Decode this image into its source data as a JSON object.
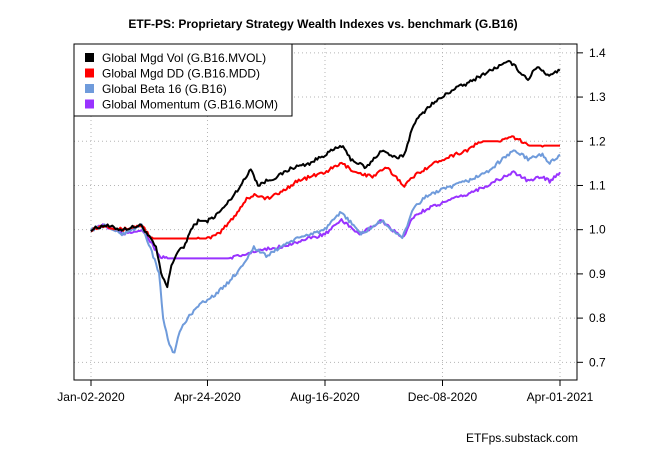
{
  "chart_data": {
    "type": "line",
    "title": "ETF-PS: Proprietary Strategy Wealth Indexes vs. benchmark (G.B16)",
    "xlabel": "",
    "ylabel": "",
    "x_range": [
      "2020-01-02",
      "2021-04-01"
    ],
    "x_ticks": [
      "Jan-02-2020",
      "Apr-24-2020",
      "Aug-16-2020",
      "Dec-08-2020",
      "Apr-01-2021"
    ],
    "ylim": [
      0.66,
      1.42
    ],
    "y_ticks": [
      0.7,
      0.8,
      0.9,
      1.0,
      1.1,
      1.2,
      1.3,
      1.4
    ],
    "y_axis_side": "right",
    "grid": true,
    "legend_position": "top-left",
    "series": [
      {
        "name": "Global Mgd Vol (G.B16.MVOL)",
        "color": "#000000",
        "points": [
          [
            "2020-01-02",
            1.0
          ],
          [
            "2020-01-15",
            1.01
          ],
          [
            "2020-02-01",
            1.0
          ],
          [
            "2020-02-20",
            1.01
          ],
          [
            "2020-03-05",
            0.96
          ],
          [
            "2020-03-10",
            0.9
          ],
          [
            "2020-03-16",
            0.87
          ],
          [
            "2020-03-20",
            0.92
          ],
          [
            "2020-03-26",
            0.95
          ],
          [
            "2020-04-01",
            0.96
          ],
          [
            "2020-04-08",
            1.0
          ],
          [
            "2020-04-15",
            1.02
          ],
          [
            "2020-04-24",
            1.02
          ],
          [
            "2020-05-01",
            1.03
          ],
          [
            "2020-05-10",
            1.05
          ],
          [
            "2020-05-20",
            1.08
          ],
          [
            "2020-06-01",
            1.12
          ],
          [
            "2020-06-05",
            1.14
          ],
          [
            "2020-06-12",
            1.1
          ],
          [
            "2020-06-20",
            1.11
          ],
          [
            "2020-07-01",
            1.12
          ],
          [
            "2020-07-15",
            1.14
          ],
          [
            "2020-08-01",
            1.15
          ],
          [
            "2020-08-16",
            1.17
          ],
          [
            "2020-09-01",
            1.19
          ],
          [
            "2020-09-10",
            1.16
          ],
          [
            "2020-09-25",
            1.14
          ],
          [
            "2020-10-10",
            1.18
          ],
          [
            "2020-10-25",
            1.16
          ],
          [
            "2020-11-01",
            1.17
          ],
          [
            "2020-11-10",
            1.24
          ],
          [
            "2020-11-25",
            1.28
          ],
          [
            "2020-12-08",
            1.3
          ],
          [
            "2020-12-20",
            1.32
          ],
          [
            "2021-01-01",
            1.33
          ],
          [
            "2021-01-15",
            1.35
          ],
          [
            "2021-02-01",
            1.37
          ],
          [
            "2021-02-12",
            1.38
          ],
          [
            "2021-02-20",
            1.36
          ],
          [
            "2021-03-01",
            1.34
          ],
          [
            "2021-03-10",
            1.37
          ],
          [
            "2021-03-20",
            1.35
          ],
          [
            "2021-04-01",
            1.36
          ]
        ]
      },
      {
        "name": "Global Mgd DD (G.B16.MDD)",
        "color": "#ff0000",
        "points": [
          [
            "2020-01-02",
            1.0
          ],
          [
            "2020-01-15",
            1.01
          ],
          [
            "2020-02-01",
            1.0
          ],
          [
            "2020-02-20",
            1.01
          ],
          [
            "2020-03-01",
            0.98
          ],
          [
            "2020-04-15",
            0.98
          ],
          [
            "2020-04-24",
            0.98
          ],
          [
            "2020-05-05",
            0.99
          ],
          [
            "2020-05-20",
            1.03
          ],
          [
            "2020-06-01",
            1.07
          ],
          [
            "2020-06-10",
            1.08
          ],
          [
            "2020-06-20",
            1.07
          ],
          [
            "2020-07-01",
            1.08
          ],
          [
            "2020-07-20",
            1.11
          ],
          [
            "2020-08-16",
            1.13
          ],
          [
            "2020-09-01",
            1.15
          ],
          [
            "2020-09-15",
            1.13
          ],
          [
            "2020-10-01",
            1.12
          ],
          [
            "2020-10-15",
            1.14
          ],
          [
            "2020-11-01",
            1.1
          ],
          [
            "2020-11-15",
            1.13
          ],
          [
            "2020-12-08",
            1.16
          ],
          [
            "2021-01-01",
            1.18
          ],
          [
            "2021-01-15",
            1.2
          ],
          [
            "2021-02-01",
            1.2
          ],
          [
            "2021-02-15",
            1.21
          ],
          [
            "2021-03-01",
            1.19
          ],
          [
            "2021-03-15",
            1.19
          ],
          [
            "2021-04-01",
            1.19
          ]
        ]
      },
      {
        "name": "Global Beta 16 (G.B16)",
        "color": "#6f9bdb",
        "points": [
          [
            "2020-01-02",
            1.0
          ],
          [
            "2020-01-15",
            1.01
          ],
          [
            "2020-02-01",
            0.99
          ],
          [
            "2020-02-20",
            1.01
          ],
          [
            "2020-03-01",
            0.95
          ],
          [
            "2020-03-08",
            0.9
          ],
          [
            "2020-03-12",
            0.8
          ],
          [
            "2020-03-18",
            0.74
          ],
          [
            "2020-03-23",
            0.72
          ],
          [
            "2020-03-28",
            0.77
          ],
          [
            "2020-04-05",
            0.8
          ],
          [
            "2020-04-15",
            0.83
          ],
          [
            "2020-04-24",
            0.84
          ],
          [
            "2020-05-10",
            0.87
          ],
          [
            "2020-05-25",
            0.91
          ],
          [
            "2020-06-08",
            0.96
          ],
          [
            "2020-06-20",
            0.94
          ],
          [
            "2020-07-10",
            0.97
          ],
          [
            "2020-08-01",
            0.99
          ],
          [
            "2020-08-16",
            1.0
          ],
          [
            "2020-09-01",
            1.04
          ],
          [
            "2020-09-20",
            0.99
          ],
          [
            "2020-10-10",
            1.02
          ],
          [
            "2020-10-30",
            0.98
          ],
          [
            "2020-11-10",
            1.05
          ],
          [
            "2020-11-25",
            1.08
          ],
          [
            "2020-12-08",
            1.09
          ],
          [
            "2021-01-01",
            1.11
          ],
          [
            "2021-01-20",
            1.13
          ],
          [
            "2021-02-15",
            1.18
          ],
          [
            "2021-03-01",
            1.16
          ],
          [
            "2021-03-15",
            1.17
          ],
          [
            "2021-03-22",
            1.15
          ],
          [
            "2021-04-01",
            1.17
          ]
        ]
      },
      {
        "name": "Global Momentum (G.B16.MOM)",
        "color": "#9933ff",
        "points": [
          [
            "2020-01-02",
            1.0
          ],
          [
            "2020-01-15",
            1.01
          ],
          [
            "2020-02-01",
            0.99
          ],
          [
            "2020-02-20",
            1.0
          ],
          [
            "2020-03-01",
            0.97
          ],
          [
            "2020-03-08",
            0.94
          ],
          [
            "2020-03-15",
            0.935
          ],
          [
            "2020-05-15",
            0.935
          ],
          [
            "2020-05-25",
            0.94
          ],
          [
            "2020-06-08",
            0.95
          ],
          [
            "2020-07-01",
            0.96
          ],
          [
            "2020-08-01",
            0.98
          ],
          [
            "2020-08-16",
            0.99
          ],
          [
            "2020-09-01",
            1.02
          ],
          [
            "2020-09-20",
            0.99
          ],
          [
            "2020-10-10",
            1.02
          ],
          [
            "2020-10-30",
            0.98
          ],
          [
            "2020-11-10",
            1.03
          ],
          [
            "2020-11-25",
            1.05
          ],
          [
            "2020-12-08",
            1.06
          ],
          [
            "2021-01-01",
            1.08
          ],
          [
            "2021-01-20",
            1.1
          ],
          [
            "2021-02-15",
            1.13
          ],
          [
            "2021-03-01",
            1.11
          ],
          [
            "2021-03-15",
            1.12
          ],
          [
            "2021-03-22",
            1.11
          ],
          [
            "2021-04-01",
            1.13
          ]
        ]
      }
    ]
  },
  "credit": "ETFps.substack.com"
}
